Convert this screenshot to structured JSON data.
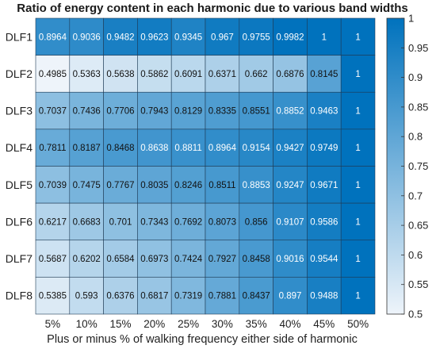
{
  "chart_data": {
    "type": "heatmap",
    "title": "Ratio of energy content in each harmonic due to various band widths",
    "xlabel": "Plus or minus % of walking frequency either side of harmonic",
    "ylabel": "",
    "columns": [
      "5%",
      "10%",
      "15%",
      "20%",
      "25%",
      "30%",
      "35%",
      "40%",
      "45%",
      "50%"
    ],
    "rows": [
      "DLF1",
      "DLF2",
      "DLF3",
      "DLF4",
      "DLF5",
      "DLF6",
      "DLF7",
      "DLF8"
    ],
    "values": [
      [
        0.8964,
        0.9036,
        0.9482,
        0.9623,
        0.9345,
        0.967,
        0.9755,
        0.9982,
        1,
        1
      ],
      [
        0.4985,
        0.5363,
        0.5638,
        0.5862,
        0.6091,
        0.6371,
        0.662,
        0.6876,
        0.8145,
        1
      ],
      [
        0.7037,
        0.7436,
        0.7706,
        0.7943,
        0.8129,
        0.8335,
        0.8551,
        0.8852,
        0.9463,
        1
      ],
      [
        0.7811,
        0.8187,
        0.8468,
        0.8638,
        0.8811,
        0.8964,
        0.9154,
        0.9427,
        0.9749,
        1
      ],
      [
        0.7039,
        0.7475,
        0.7767,
        0.8035,
        0.8246,
        0.8511,
        0.8853,
        0.9247,
        0.9671,
        1
      ],
      [
        0.6217,
        0.6683,
        0.701,
        0.7343,
        0.7692,
        0.8073,
        0.856,
        0.9107,
        0.9586,
        1
      ],
      [
        0.5687,
        0.6202,
        0.6584,
        0.6973,
        0.7424,
        0.7927,
        0.8458,
        0.9016,
        0.9544,
        1
      ],
      [
        0.5385,
        0.593,
        0.6376,
        0.6817,
        0.7319,
        0.7881,
        0.8437,
        0.897,
        0.9488,
        1
      ]
    ],
    "value_labels": [
      [
        "0.8964",
        "0.9036",
        "0.9482",
        "0.9623",
        "0.9345",
        "0.967",
        "0.9755",
        "0.9982",
        "1",
        "1"
      ],
      [
        "0.4985",
        "0.5363",
        "0.5638",
        "0.5862",
        "0.6091",
        "0.6371",
        "0.662",
        "0.6876",
        "0.8145",
        "1"
      ],
      [
        "0.7037",
        "0.7436",
        "0.7706",
        "0.7943",
        "0.8129",
        "0.8335",
        "0.8551",
        "0.8852",
        "0.9463",
        "1"
      ],
      [
        "0.7811",
        "0.8187",
        "0.8468",
        "0.8638",
        "0.8811",
        "0.8964",
        "0.9154",
        "0.9427",
        "0.9749",
        "1"
      ],
      [
        "0.7039",
        "0.7475",
        "0.7767",
        "0.8035",
        "0.8246",
        "0.8511",
        "0.8853",
        "0.9247",
        "0.9671",
        "1"
      ],
      [
        "0.6217",
        "0.6683",
        "0.701",
        "0.7343",
        "0.7692",
        "0.8073",
        "0.856",
        "0.9107",
        "0.9586",
        "1"
      ],
      [
        "0.5687",
        "0.6202",
        "0.6584",
        "0.6973",
        "0.7424",
        "0.7927",
        "0.8458",
        "0.9016",
        "0.9544",
        "1"
      ],
      [
        "0.5385",
        "0.593",
        "0.6376",
        "0.6817",
        "0.7319",
        "0.7881",
        "0.8437",
        "0.897",
        "0.9488",
        "1"
      ]
    ],
    "colorbar": {
      "range": [
        0.5,
        1
      ],
      "ticks": [
        "0.5",
        "0.55",
        "0.6",
        "0.65",
        "0.7",
        "0.75",
        "0.8",
        "0.85",
        "0.9",
        "0.95",
        "1"
      ],
      "colormap": [
        "#eef4fa",
        "#0072bd"
      ]
    },
    "grid": true
  }
}
